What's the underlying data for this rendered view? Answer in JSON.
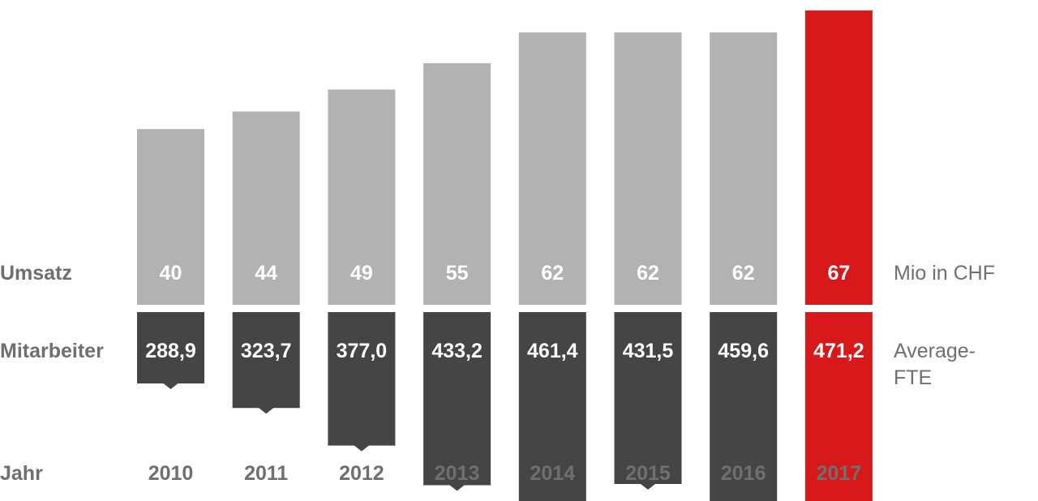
{
  "row_labels": {
    "revenue": "Umsatz",
    "employees": "Mitarbeiter",
    "year": "Jahr"
  },
  "units": {
    "revenue": "Mio in CHF",
    "employees_line1": "Average-",
    "employees_line2": "FTE"
  },
  "colors": {
    "revenue_bar": "#b2b2b2",
    "employee_bar": "#454545",
    "highlight": "#d7191c",
    "label_text": "#6f6f6f"
  },
  "chart_data": {
    "type": "bar",
    "categories": [
      "2010",
      "2011",
      "2012",
      "2013",
      "2014",
      "2015",
      "2016",
      "2017"
    ],
    "series": [
      {
        "name": "Umsatz",
        "values": [
          40,
          44,
          49,
          55,
          62,
          62,
          62,
          67
        ],
        "labels": [
          "40",
          "44",
          "49",
          "55",
          "62",
          "62",
          "62",
          "67"
        ]
      },
      {
        "name": "Mitarbeiter",
        "values": [
          288.9,
          323.7,
          377.0,
          433.2,
          461.4,
          431.5,
          459.6,
          471.2
        ],
        "labels": [
          "288,9",
          "323,7",
          "377,0",
          "433,2",
          "461,4",
          "431,5",
          "459,6",
          "471,2"
        ]
      }
    ],
    "highlight_category": "2017",
    "grid": false,
    "legend": "none"
  }
}
